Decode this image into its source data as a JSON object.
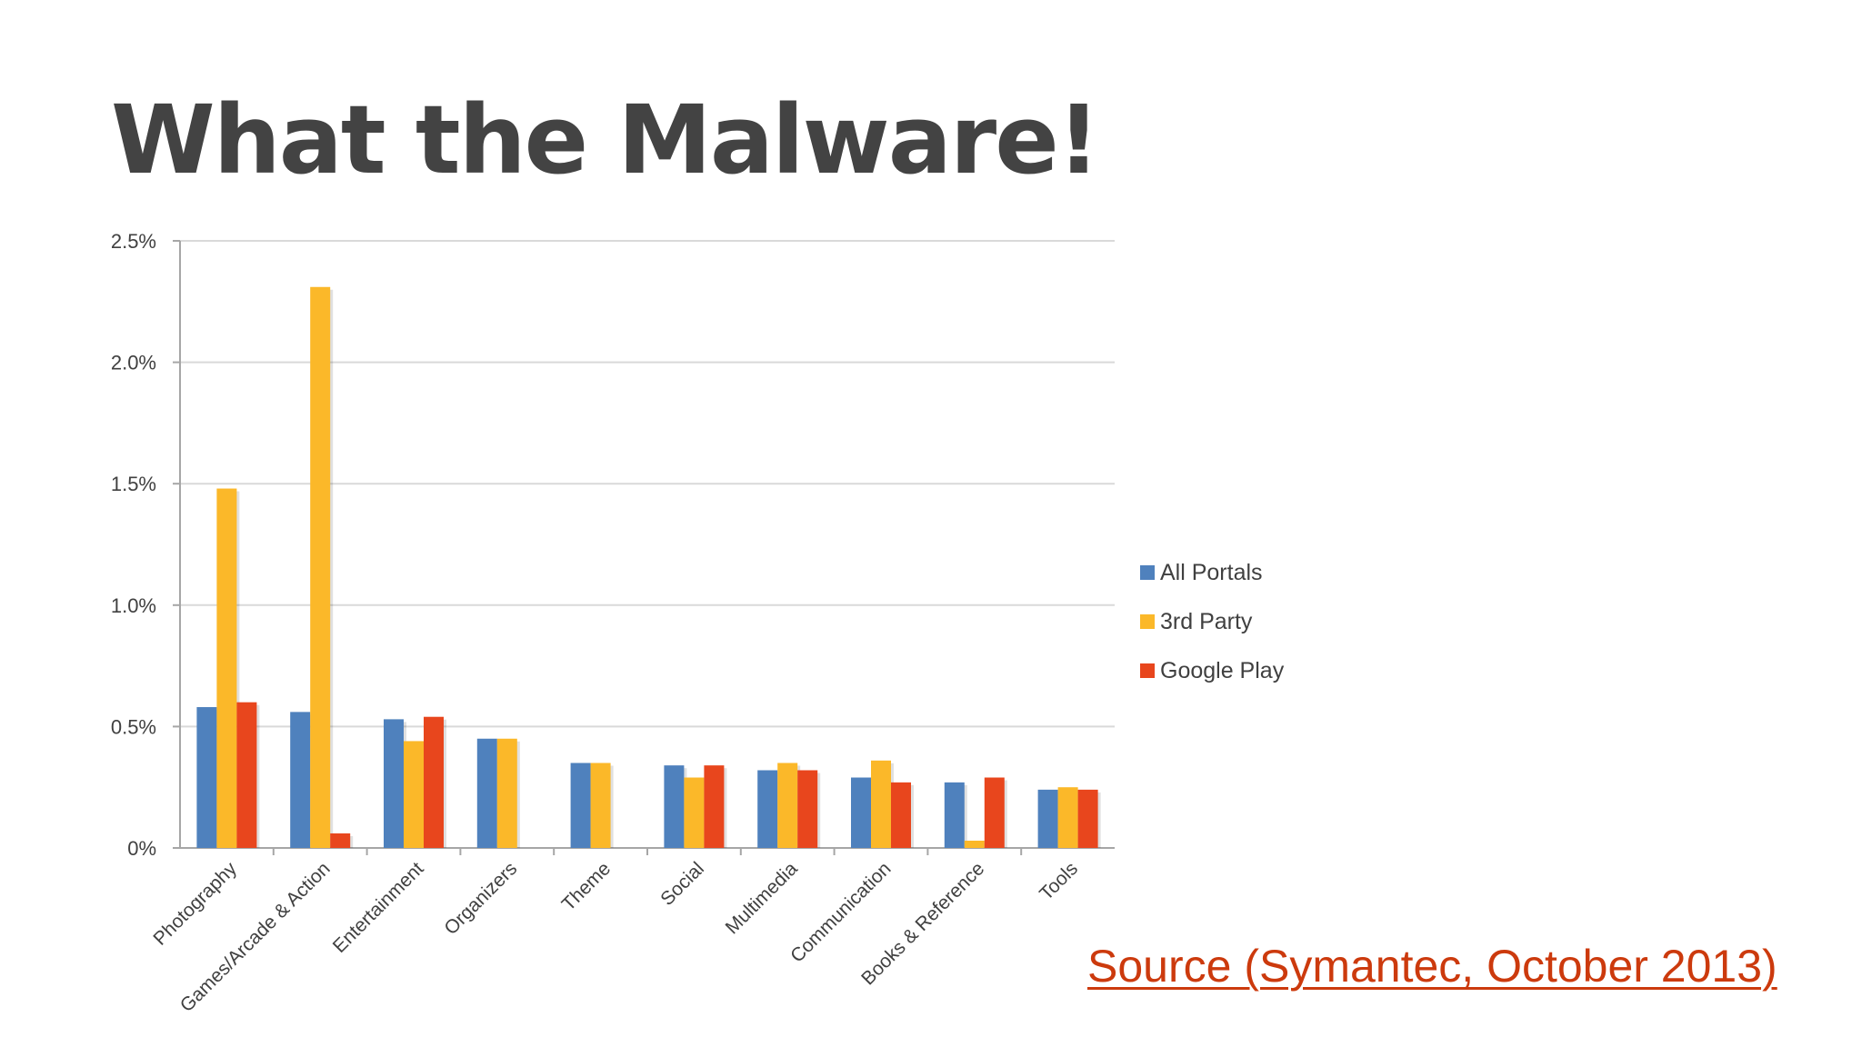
{
  "slide": {
    "title": "What the Malware!",
    "source_text": "Source (Symantec, October 2013)"
  },
  "colors": {
    "title": "#434343",
    "source_link": "#cc3a0d",
    "grid": "#d9d9d9",
    "axis": "#a6a6a6"
  },
  "chart_data": {
    "type": "bar",
    "title": "",
    "xlabel": "",
    "ylabel": "",
    "categories": [
      "Photography",
      "Games/Arcade & Action",
      "Entertainment",
      "Organizers",
      "Theme",
      "Social",
      "Multimedia",
      "Communication",
      "Books & Reference",
      "Tools"
    ],
    "series": [
      {
        "name": "All Portals",
        "color": "#4f81bd",
        "values": [
          0.58,
          0.56,
          0.53,
          0.45,
          0.35,
          0.34,
          0.32,
          0.29,
          0.27,
          0.24
        ]
      },
      {
        "name": "3rd Party",
        "color": "#fbb829",
        "values": [
          1.48,
          2.31,
          0.44,
          0.45,
          0.35,
          0.29,
          0.35,
          0.36,
          0.03,
          0.25
        ]
      },
      {
        "name": "Google Play",
        "color": "#e8461d",
        "values": [
          0.6,
          0.06,
          0.54,
          null,
          null,
          0.34,
          0.32,
          0.27,
          0.29,
          0.24
        ]
      }
    ],
    "ylim": [
      0,
      2.5
    ],
    "yticks": [
      "0%",
      "0.5%",
      "1.0%",
      "1.5%",
      "2.0%",
      "2.5%"
    ],
    "grid": true,
    "legend_position": "right"
  }
}
